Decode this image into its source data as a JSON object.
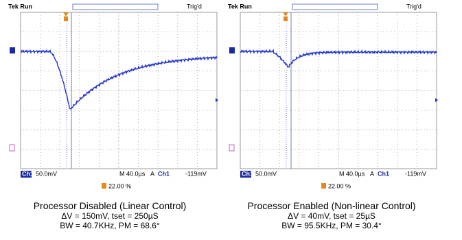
{
  "panels": [
    {
      "status": "Tek Run",
      "trigger": "Trig'd",
      "channel": "Ch1",
      "scale": "50.0mV",
      "timebase": "M 40.0µs",
      "trigger_mode": "A",
      "trigger_channel": "Ch1",
      "trigger_level": "-119mV",
      "position": "22.00 %",
      "caption": {
        "title": "Processor Disabled (Linear Control)",
        "line1": "ΔV = 150mV, tset = 250µS",
        "line2": "BW =  40.7KHz, PM = 68.6°"
      }
    },
    {
      "status": "Tek Run",
      "trigger": "Trig'd",
      "channel": "Ch1",
      "scale": "50.0mV",
      "timebase": "M 40.0µs",
      "trigger_mode": "A",
      "trigger_channel": "Ch1",
      "trigger_level": "-119mV",
      "position": "22.00 %",
      "caption": {
        "title": "Processor Enabled (Non-linear Control)",
        "line1": "ΔV = 40mV, tset = 25µS",
        "line2": "BW = 95.5KHz, PM = 30.4°"
      }
    }
  ]
}
